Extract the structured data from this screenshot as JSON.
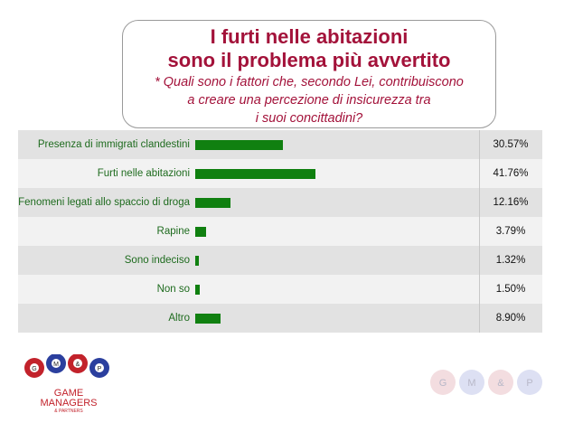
{
  "header": {
    "title_line1": "I furti nelle abitazioni",
    "title_line2": "sono il problema più avvertito",
    "question_line1": "* Quali sono i fattori che, secondo Lei, contribuiscono",
    "question_line2": "a creare una percezione di insicurezza tra",
    "question_line3": "i suoi concittadini?"
  },
  "chart_data": {
    "type": "bar",
    "orientation": "horizontal",
    "categories": [
      "Presenza di immigrati clandestini",
      "Furti nelle abitazioni",
      "Fenomeni legati allo spaccio di droga",
      "Rapine",
      "Sono indeciso",
      "Non so",
      "Altro"
    ],
    "values": [
      30.57,
      41.76,
      12.16,
      3.79,
      1.32,
      1.5,
      8.9
    ],
    "value_labels": [
      "30.57%",
      "41.76%",
      "12.16%",
      "3.79%",
      "1.32%",
      "1.50%",
      "8.90%"
    ],
    "bar_color": "#108010"
  },
  "logos": {
    "left_balls": [
      "G",
      "M",
      "&",
      "P"
    ],
    "left_text_line1": "GAME",
    "left_text_line2": "MANAGERS",
    "left_text_line3": "& PARTNERS",
    "right_balls": [
      "G",
      "M",
      "&",
      "P"
    ]
  },
  "colors": {
    "title": "#a3123a",
    "label": "#1e6b1e",
    "bar": "#108010"
  }
}
